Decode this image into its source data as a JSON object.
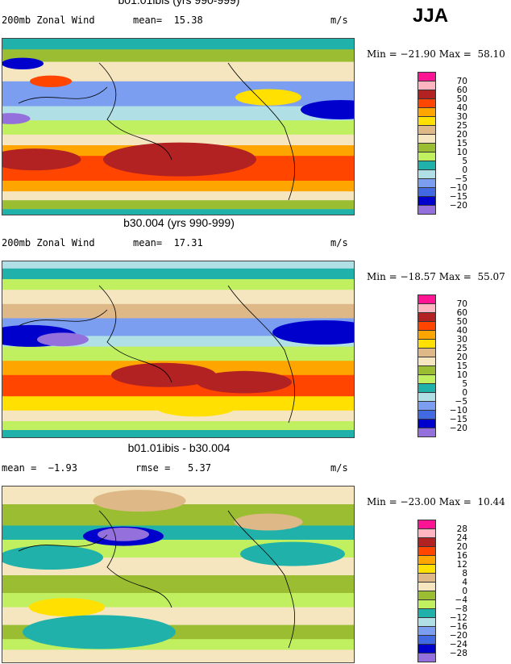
{
  "season": "JJA",
  "colors": [
    "#ff1493",
    "#ffb6c1",
    "#b22222",
    "#ff4500",
    "#ffa500",
    "#ffe000",
    "#deb887",
    "#f5e6c0",
    "#9abd32",
    "#c0f060",
    "#20b2aa",
    "#b0e0e6",
    "#7b9ef0",
    "#4169e1",
    "#0000cd",
    "#9370db"
  ],
  "panels": [
    {
      "title": "b01.01ibis (yrs 990-999)",
      "variable": "200mb Zonal Wind",
      "stat1": "mean=  15.38",
      "stat2": "",
      "units": "m/s",
      "minmax": "Min = −21.90 Max =  58.10",
      "levels": [
        "70",
        "60",
        "50",
        "40",
        "30",
        "25",
        "20",
        "15",
        "10",
        "5",
        "0",
        "−5",
        "−10",
        "−15",
        "−20"
      ]
    },
    {
      "title": "b30.004 (yrs 990-999)",
      "variable": "200mb Zonal Wind",
      "stat1": "mean=  17.31",
      "stat2": "",
      "units": "m/s",
      "minmax": "Min = −18.57 Max =  55.07",
      "levels": [
        "70",
        "60",
        "50",
        "40",
        "30",
        "25",
        "20",
        "15",
        "10",
        "5",
        "0",
        "−5",
        "−10",
        "−15",
        "−20"
      ]
    },
    {
      "title": "b01.01ibis - b30.004",
      "variable": "",
      "stat1": "mean =  −1.93",
      "stat2": "rmse =   5.37",
      "units": "m/s",
      "minmax": "Min = −23.00 Max =  10.44",
      "levels": [
        "28",
        "24",
        "20",
        "16",
        "12",
        "8",
        "4",
        "0",
        "−4",
        "−8",
        "−12",
        "−16",
        "−20",
        "−24",
        "−28"
      ]
    }
  ]
}
